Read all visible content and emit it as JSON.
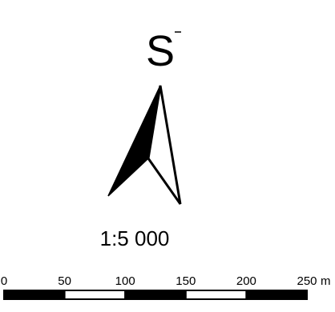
{
  "north_arrow": {
    "letter": "S"
  },
  "scale": {
    "ratio_text": "1:5 000",
    "ticks": [
      {
        "value": 0,
        "label": "0"
      },
      {
        "value": 50,
        "label": "50"
      },
      {
        "value": 100,
        "label": "100"
      },
      {
        "value": 150,
        "label": "150"
      },
      {
        "value": 200,
        "label": "200"
      },
      {
        "value": 250,
        "label": "250"
      }
    ],
    "unit": "m",
    "bar_segments": [
      {
        "from": 0,
        "to": 50,
        "fill": "#000000"
      },
      {
        "from": 50,
        "to": 100,
        "fill": "#ffffff"
      },
      {
        "from": 100,
        "to": 150,
        "fill": "#000000"
      },
      {
        "from": 150,
        "to": 200,
        "fill": "#ffffff"
      },
      {
        "from": 200,
        "to": 250,
        "fill": "#000000"
      }
    ]
  }
}
